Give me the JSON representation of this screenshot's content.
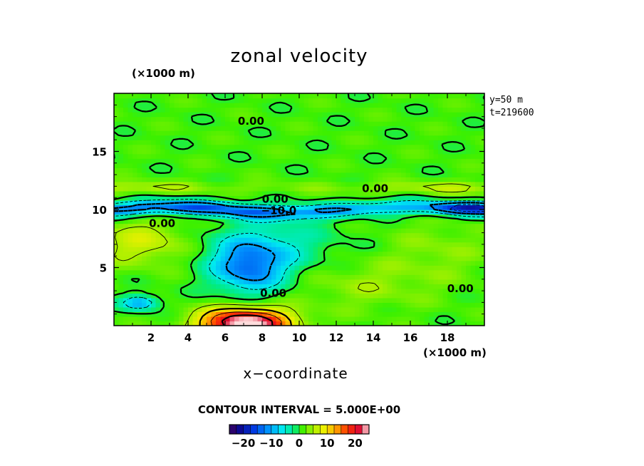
{
  "chart_data": {
    "type": "heatmap",
    "title": "zonal velocity",
    "xlabel": "x−coordinate",
    "x_unit": "(×1000 m)",
    "y_unit": "(×1000 m)",
    "annotations": [
      "y=50  m",
      "t=219600"
    ],
    "contour_interval": "CONTOUR INTERVAL = 5.000E+00",
    "xlim": [
      0,
      20
    ],
    "ylim": [
      0,
      20
    ],
    "x_ticks": [
      "2",
      "4",
      "6",
      "8",
      "10",
      "12",
      "14",
      "16",
      "18"
    ],
    "y_ticks": [
      "5",
      "10",
      "15"
    ],
    "x_tick_values": [
      2,
      4,
      6,
      8,
      10,
      12,
      14,
      16,
      18
    ],
    "y_tick_values": [
      5,
      10,
      15
    ],
    "colorbar": {
      "range": [
        -25,
        25
      ],
      "ticks": [
        "−20",
        "−10",
        "0",
        "10",
        "20"
      ],
      "tick_values": [
        -20,
        -10,
        0,
        10,
        20
      ]
    },
    "contour_labels": [
      {
        "text": "0.00",
        "x": 7.4,
        "y": 17.6
      },
      {
        "text": "0.00",
        "x": 14.1,
        "y": 11.8
      },
      {
        "text": "0.00",
        "x": 8.7,
        "y": 10.9
      },
      {
        "text": "−10.0",
        "x": 8.9,
        "y": 9.9
      },
      {
        "text": "0.00",
        "x": 2.6,
        "y": 8.8
      },
      {
        "text": "0.00",
        "x": 8.6,
        "y": 2.8
      },
      {
        "text": "0.00",
        "x": 18.7,
        "y": 3.2
      }
    ],
    "features": [
      {
        "kind": "jet",
        "sign": "negative",
        "y_center": 10.0,
        "peak": -15
      },
      {
        "kind": "blob",
        "sign": "negative",
        "x": 7.3,
        "y": 5.1,
        "peak": -13
      },
      {
        "kind": "blob",
        "sign": "positive",
        "x": 7.1,
        "y": 0.3,
        "peak": 24
      },
      {
        "kind": "blob",
        "sign": "negative",
        "x": 1.4,
        "y": 2.0,
        "peak": -11
      },
      {
        "kind": "blob",
        "sign": "positive",
        "x": 1.5,
        "y": 7.0,
        "peak": 6
      },
      {
        "kind": "band",
        "sign": "positive",
        "y_center": 11.9,
        "peak": 5
      },
      {
        "kind": "jet",
        "sign": "negative",
        "x_range": [
          17,
          20
        ],
        "y_center": 10.2,
        "peak": -12
      }
    ],
    "grid": false,
    "legend": "colorbar-bottom"
  }
}
